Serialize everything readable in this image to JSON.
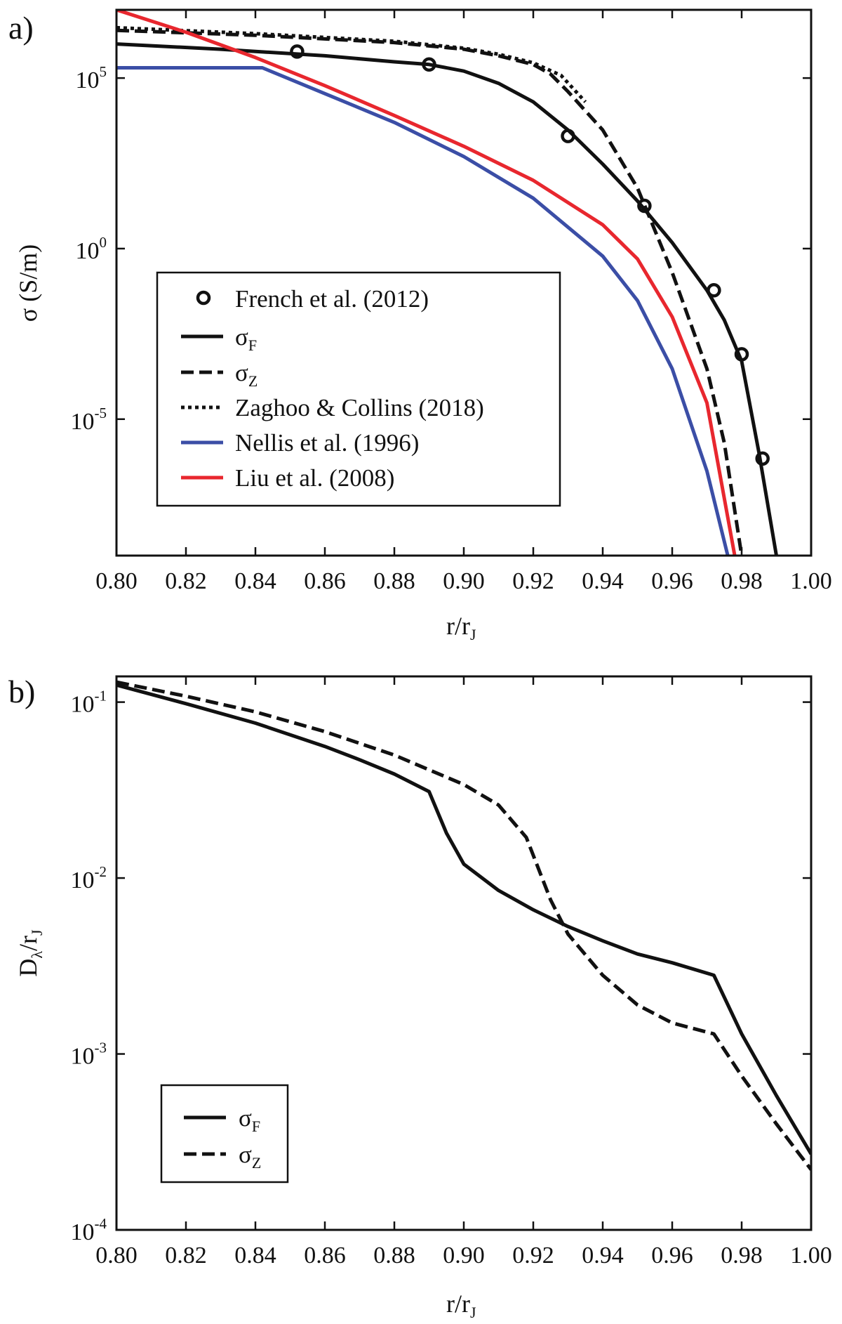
{
  "chart_data": [
    {
      "panel": "a)",
      "type": "line",
      "xlabel": "r/r",
      "xlabel_sub": "J",
      "ylabel": "σ (S/m)",
      "yscale": "log",
      "xlim": [
        0.8,
        1.0
      ],
      "ylim": [
        1e-09,
        10000000.0
      ],
      "xticks": [
        "0.80",
        "0.82",
        "0.84",
        "0.86",
        "0.88",
        "0.90",
        "0.92",
        "0.94",
        "0.96",
        "0.98",
        "1.00"
      ],
      "yticks": [
        {
          "base": "10",
          "exp": "5",
          "value": 100000.0
        },
        {
          "base": "10",
          "exp": "0",
          "value": 1
        },
        {
          "base": "10",
          "exp": "-5",
          "value": 1e-05
        }
      ],
      "legend_position": "center-left",
      "series": [
        {
          "name": "French et al. (2012)",
          "label": "French et al. (2012)",
          "style": "markers",
          "color": "#111111",
          "x": [
            0.852,
            0.89,
            0.93,
            0.952,
            0.972,
            0.98,
            0.986
          ],
          "y": [
            600000.0,
            250000.0,
            2000.0,
            18,
            0.06,
            0.0008,
            7e-07
          ]
        },
        {
          "name": "σF",
          "label": "σ",
          "label_sub": "F",
          "style": "solid",
          "color": "#111111",
          "x": [
            0.8,
            0.83,
            0.86,
            0.88,
            0.89,
            0.9,
            0.91,
            0.92,
            0.93,
            0.94,
            0.95,
            0.96,
            0.97,
            0.975,
            0.98,
            0.985,
            0.99
          ],
          "y": [
            1000000.0,
            700000.0,
            450000.0,
            300000.0,
            250000.0,
            160000.0,
            70000.0,
            20000.0,
            3000.0,
            300,
            25,
            1.5,
            0.06,
            0.008,
            0.0005,
            1e-06,
            1e-09
          ]
        },
        {
          "name": "σZ",
          "label": "σ",
          "label_sub": "Z",
          "style": "dashed",
          "color": "#111111",
          "x": [
            0.8,
            0.84,
            0.88,
            0.9,
            0.91,
            0.92,
            0.925,
            0.93,
            0.94,
            0.95,
            0.96,
            0.97,
            0.975,
            0.98
          ],
          "y": [
            2500000.0,
            1800000.0,
            1100000.0,
            700000.0,
            450000.0,
            250000.0,
            130000.0,
            40000.0,
            3000.0,
            60,
            0.2,
            0.0003,
            2e-06,
            1e-09
          ]
        },
        {
          "name": "Zaghoo & Collins (2018)",
          "label": "Zaghoo & Collins (2018)",
          "style": "dotted",
          "color": "#111111",
          "x": [
            0.8,
            0.84,
            0.88,
            0.9,
            0.91,
            0.92,
            0.928,
            0.935
          ],
          "y": [
            3000000.0,
            2000000.0,
            1200000.0,
            750000.0,
            500000.0,
            280000.0,
            120000.0,
            20000.0
          ]
        },
        {
          "name": "Nellis et al. (1996)",
          "label": "Nellis et al. (1996)",
          "style": "solid",
          "color": "#3b4ea6",
          "x": [
            0.8,
            0.842,
            0.86,
            0.88,
            0.9,
            0.92,
            0.94,
            0.95,
            0.96,
            0.97,
            0.976
          ],
          "y": [
            200000.0,
            200000.0,
            35000.0,
            5000.0,
            500.0,
            30,
            0.6,
            0.03,
            0.0003,
            3e-07,
            1e-09
          ]
        },
        {
          "name": "Liu et al. (2008)",
          "label": "Liu et al. (2008)",
          "style": "solid",
          "color": "#e8272e",
          "x": [
            0.8,
            0.82,
            0.84,
            0.86,
            0.88,
            0.9,
            0.92,
            0.94,
            0.95,
            0.96,
            0.97,
            0.978
          ],
          "y": [
            10000000.0,
            2200000.0,
            400000.0,
            60000.0,
            8000.0,
            1000.0,
            100,
            5,
            0.5,
            0.01,
            3e-05,
            1e-09
          ]
        }
      ]
    },
    {
      "panel": "b)",
      "type": "line",
      "xlabel": "r/r",
      "xlabel_sub": "J",
      "ylabel": "D",
      "ylabel_sub": "λ",
      "ylabel_rest": "/r",
      "ylabel_rest_sub": "J",
      "yscale": "log",
      "xlim": [
        0.8,
        1.0
      ],
      "ylim": [
        0.0001,
        0.14
      ],
      "xticks": [
        "0.80",
        "0.82",
        "0.84",
        "0.86",
        "0.88",
        "0.90",
        "0.92",
        "0.94",
        "0.96",
        "0.98",
        "1.00"
      ],
      "yticks": [
        {
          "base": "10",
          "exp": "-1",
          "value": 0.1
        },
        {
          "base": "10",
          "exp": "-2",
          "value": 0.01
        },
        {
          "base": "10",
          "exp": "-3",
          "value": 0.001
        },
        {
          "base": "10",
          "exp": "-4",
          "value": 0.0001
        }
      ],
      "legend_position": "bottom-left",
      "series": [
        {
          "name": "σF",
          "label": "σ",
          "label_sub": "F",
          "style": "solid",
          "color": "#111111",
          "x": [
            0.8,
            0.82,
            0.84,
            0.86,
            0.87,
            0.88,
            0.89,
            0.895,
            0.9,
            0.91,
            0.92,
            0.93,
            0.94,
            0.95,
            0.96,
            0.972,
            0.98,
            0.99,
            1.0
          ],
          "y": [
            0.125,
            0.098,
            0.076,
            0.056,
            0.047,
            0.039,
            0.031,
            0.018,
            0.012,
            0.0085,
            0.0066,
            0.0053,
            0.0044,
            0.0037,
            0.0033,
            0.0028,
            0.0013,
            0.00058,
            0.00027
          ]
        },
        {
          "name": "σZ",
          "label": "σ",
          "label_sub": "Z",
          "style": "dashed",
          "color": "#111111",
          "x": [
            0.8,
            0.82,
            0.84,
            0.86,
            0.88,
            0.9,
            0.91,
            0.918,
            0.925,
            0.93,
            0.94,
            0.95,
            0.96,
            0.972,
            0.98,
            0.99,
            1.0
          ],
          "y": [
            0.13,
            0.108,
            0.088,
            0.068,
            0.05,
            0.034,
            0.026,
            0.017,
            0.0075,
            0.0048,
            0.0028,
            0.0019,
            0.0015,
            0.0013,
            0.00075,
            0.0004,
            0.00022
          ]
        }
      ]
    }
  ]
}
